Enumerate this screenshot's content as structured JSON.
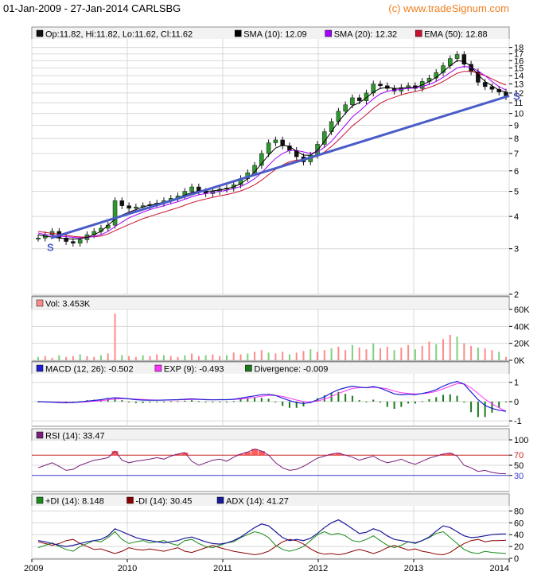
{
  "header": {
    "title": "01-Jan-2009 - 27-Jan-2014 CARLSBG",
    "brand": "(c) www.tradeSignum.com"
  },
  "colors": {
    "frame": "#8a8a8a",
    "grid": "#d8d8d8",
    "price_up": "#2e9a2e",
    "price_down": "#111111",
    "sma10": "#000000",
    "sma20": "#a400ff",
    "ema50": "#c8102e",
    "trendline": "#4a5cc8",
    "volume": "#ff8a8a",
    "volume_up": "#7ed07e",
    "macd": "#1f1fd0",
    "exp": "#ff33ff",
    "divergence": "#1a7a1a",
    "rsi": "#7a1f7a",
    "rsi_zone": "#ff4040",
    "pdi": "#1a8a1a",
    "mdi": "#8b0000",
    "adx": "#1a1a9a"
  },
  "chart_data": [
    {
      "type": "candlestick",
      "id": "price",
      "scale": "log",
      "ylim": [
        2,
        19
      ],
      "yticks": [
        "2",
        "3",
        "4",
        "5",
        "6",
        "7",
        "8",
        "9",
        "10",
        "11",
        "12",
        "13",
        "14",
        "15",
        "16",
        "17",
        "18"
      ],
      "legend": [
        {
          "label": "Op:11.82, Hi:11.82, Lo:11.62, Cl:11.62",
          "color_key": "price_down"
        },
        {
          "label": "SMA (10): 12.09",
          "color_key": "sma10"
        },
        {
          "label": "SMA (20): 12.32",
          "color_key": "sma20"
        },
        {
          "label": "EMA (50): 12.88",
          "color_key": "ema50"
        }
      ],
      "close": [
        3.3,
        3.4,
        3.5,
        3.3,
        3.2,
        3.15,
        3.25,
        3.4,
        3.5,
        3.6,
        3.7,
        4.6,
        4.4,
        4.3,
        4.35,
        4.4,
        4.45,
        4.5,
        4.6,
        4.7,
        4.8,
        5.0,
        5.2,
        5.0,
        4.9,
        5.0,
        5.1,
        5.15,
        5.3,
        5.6,
        5.9,
        6.3,
        7.0,
        7.7,
        7.9,
        7.5,
        7.2,
        6.8,
        6.5,
        6.9,
        7.6,
        8.5,
        9.3,
        10.2,
        10.8,
        11.5,
        11.2,
        12.0,
        13.0,
        12.8,
        12.5,
        12.2,
        12.6,
        12.8,
        12.5,
        13.3,
        13.7,
        14.4,
        15.3,
        16.3,
        16.9,
        15.5,
        14.5,
        13.2,
        12.7,
        12.4,
        12.1,
        11.6
      ],
      "sma10": [
        3.4,
        3.35,
        3.33,
        3.3,
        3.28,
        3.27,
        3.28,
        3.32,
        3.4,
        3.5,
        3.7,
        3.9,
        4.05,
        4.15,
        4.25,
        4.35,
        4.42,
        4.48,
        4.54,
        4.62,
        4.72,
        4.84,
        4.95,
        5.0,
        5.0,
        5.02,
        5.06,
        5.12,
        5.2,
        5.35,
        5.6,
        5.95,
        6.4,
        6.9,
        7.35,
        7.55,
        7.45,
        7.15,
        6.9,
        6.9,
        7.2,
        7.8,
        8.5,
        9.3,
        10.0,
        10.7,
        11.0,
        11.5,
        12.1,
        12.5,
        12.6,
        12.5,
        12.5,
        12.6,
        12.6,
        12.9,
        13.3,
        13.8,
        14.5,
        15.3,
        16.0,
        15.9,
        15.2,
        14.1,
        13.3,
        12.8,
        12.3,
        12.09
      ],
      "sma20": [
        3.45,
        3.4,
        3.38,
        3.36,
        3.34,
        3.32,
        3.3,
        3.31,
        3.35,
        3.4,
        3.5,
        3.65,
        3.8,
        3.95,
        4.05,
        4.15,
        4.25,
        4.32,
        4.4,
        4.48,
        4.56,
        4.66,
        4.76,
        4.85,
        4.9,
        4.95,
        5.0,
        5.05,
        5.12,
        5.22,
        5.38,
        5.6,
        5.9,
        6.3,
        6.7,
        7.0,
        7.2,
        7.2,
        7.1,
        7.0,
        7.1,
        7.4,
        7.8,
        8.4,
        9.0,
        9.7,
        10.2,
        10.8,
        11.4,
        11.9,
        12.2,
        12.3,
        12.4,
        12.5,
        12.55,
        12.7,
        12.95,
        13.3,
        13.8,
        14.4,
        15.0,
        15.2,
        15.1,
        14.6,
        14.0,
        13.3,
        12.7,
        12.32
      ],
      "ema50": [
        3.5,
        3.47,
        3.44,
        3.41,
        3.38,
        3.35,
        3.33,
        3.33,
        3.34,
        3.36,
        3.42,
        3.52,
        3.62,
        3.72,
        3.82,
        3.92,
        4.0,
        4.08,
        4.16,
        4.24,
        4.32,
        4.42,
        4.52,
        4.6,
        4.67,
        4.74,
        4.8,
        4.86,
        4.93,
        5.02,
        5.14,
        5.3,
        5.52,
        5.8,
        6.08,
        6.32,
        6.5,
        6.6,
        6.64,
        6.7,
        6.85,
        7.1,
        7.45,
        7.9,
        8.4,
        8.95,
        9.4,
        9.9,
        10.45,
        10.95,
        11.3,
        11.55,
        11.8,
        12.0,
        12.15,
        12.35,
        12.6,
        12.9,
        13.3,
        13.8,
        14.3,
        14.55,
        14.55,
        14.3,
        14.0,
        13.6,
        13.2,
        12.88
      ],
      "trendline": {
        "label": "S",
        "from": [
          0.04,
          3.3
        ],
        "to": [
          1.0,
          11.7
        ]
      }
    },
    {
      "type": "bar",
      "id": "volume",
      "ylim": [
        0,
        60
      ],
      "yticks": [
        "0K",
        "20K",
        "40K",
        "60K"
      ],
      "legend": [
        {
          "label": "Vol: 3.453K",
          "color_key": "volume"
        }
      ],
      "values": [
        4,
        5,
        3,
        6,
        4,
        5,
        7,
        5,
        4,
        6,
        8,
        55,
        6,
        5,
        4,
        6,
        5,
        7,
        6,
        5,
        4,
        6,
        8,
        5,
        6,
        7,
        5,
        6,
        9,
        7,
        8,
        10,
        12,
        9,
        8,
        10,
        7,
        9,
        11,
        13,
        10,
        12,
        14,
        16,
        12,
        18,
        15,
        13,
        20,
        14,
        16,
        12,
        15,
        18,
        13,
        17,
        22,
        19,
        25,
        30,
        28,
        20,
        17,
        15,
        14,
        12,
        10,
        4
      ]
    },
    {
      "type": "line",
      "id": "macd",
      "ylim": [
        -1.2,
        1.4
      ],
      "yticks": [
        "-1",
        "0",
        "1"
      ],
      "legend": [
        {
          "label": "MACD (12, 26): -0.502",
          "color_key": "macd"
        },
        {
          "label": "EXP (9): -0.493",
          "color_key": "exp"
        },
        {
          "label": "Divergence: -0.009",
          "color_key": "divergence"
        }
      ],
      "macd": [
        0.0,
        -0.02,
        -0.03,
        -0.05,
        -0.06,
        -0.05,
        -0.02,
        0.02,
        0.06,
        0.1,
        0.16,
        0.2,
        0.18,
        0.14,
        0.1,
        0.08,
        0.07,
        0.07,
        0.08,
        0.09,
        0.1,
        0.12,
        0.14,
        0.12,
        0.1,
        0.09,
        0.1,
        0.1,
        0.12,
        0.18,
        0.24,
        0.3,
        0.36,
        0.38,
        0.32,
        0.18,
        0.05,
        -0.05,
        -0.1,
        -0.05,
        0.1,
        0.25,
        0.45,
        0.62,
        0.72,
        0.8,
        0.75,
        0.72,
        0.78,
        0.7,
        0.55,
        0.4,
        0.35,
        0.38,
        0.36,
        0.42,
        0.5,
        0.62,
        0.8,
        0.95,
        1.05,
        0.9,
        0.5,
        0.1,
        -0.2,
        -0.35,
        -0.45,
        -0.502
      ],
      "exp": [
        0.0,
        -0.01,
        -0.02,
        -0.03,
        -0.04,
        -0.04,
        -0.03,
        -0.01,
        0.02,
        0.05,
        0.09,
        0.13,
        0.15,
        0.15,
        0.13,
        0.11,
        0.09,
        0.08,
        0.08,
        0.08,
        0.09,
        0.1,
        0.11,
        0.11,
        0.11,
        0.1,
        0.1,
        0.1,
        0.11,
        0.13,
        0.17,
        0.22,
        0.28,
        0.32,
        0.32,
        0.27,
        0.18,
        0.08,
        0.0,
        -0.02,
        0.03,
        0.12,
        0.27,
        0.42,
        0.56,
        0.68,
        0.72,
        0.72,
        0.74,
        0.72,
        0.66,
        0.55,
        0.46,
        0.42,
        0.4,
        0.41,
        0.45,
        0.53,
        0.66,
        0.8,
        0.93,
        0.92,
        0.72,
        0.42,
        0.12,
        -0.12,
        -0.32,
        -0.493
      ]
    },
    {
      "type": "line",
      "id": "rsi",
      "ylim": [
        0,
        100
      ],
      "yticks": [
        "30",
        "50",
        "70",
        "100"
      ],
      "legend": [
        {
          "label": "RSI (14): 33.47",
          "color_key": "rsi"
        }
      ],
      "values": [
        45,
        50,
        55,
        48,
        40,
        42,
        50,
        55,
        60,
        62,
        65,
        78,
        60,
        55,
        58,
        60,
        62,
        65,
        62,
        68,
        72,
        75,
        58,
        50,
        55,
        60,
        62,
        58,
        66,
        72,
        76,
        82,
        78,
        70,
        55,
        45,
        40,
        42,
        48,
        56,
        64,
        68,
        72,
        74,
        70,
        66,
        60,
        64,
        68,
        60,
        55,
        58,
        62,
        56,
        52,
        58,
        64,
        68,
        72,
        74,
        68,
        50,
        45,
        38,
        40,
        36,
        34,
        33.47
      ]
    },
    {
      "type": "line",
      "id": "dmi",
      "ylim": [
        0,
        90
      ],
      "yticks": [
        "0",
        "20",
        "40",
        "60",
        "80"
      ],
      "legend": [
        {
          "label": "+DI (14): 8.148",
          "color_key": "pdi"
        },
        {
          "label": "-DI (14): 30.45",
          "color_key": "mdi"
        },
        {
          "label": "ADX (14): 41.27",
          "color_key": "adx"
        }
      ],
      "pdi": [
        18,
        22,
        26,
        20,
        15,
        12,
        20,
        25,
        30,
        28,
        35,
        45,
        32,
        25,
        28,
        30,
        26,
        28,
        30,
        25,
        22,
        30,
        32,
        25,
        20,
        18,
        22,
        26,
        28,
        35,
        40,
        45,
        42,
        35,
        22,
        15,
        12,
        15,
        20,
        30,
        40,
        45,
        40,
        42,
        38,
        30,
        28,
        32,
        38,
        30,
        22,
        18,
        22,
        28,
        25,
        30,
        35,
        42,
        45,
        35,
        25,
        15,
        10,
        8,
        12,
        10,
        9,
        8.148
      ],
      "mdi": [
        28,
        25,
        22,
        25,
        30,
        32,
        25,
        20,
        15,
        16,
        12,
        8,
        12,
        18,
        15,
        14,
        16,
        14,
        12,
        15,
        18,
        12,
        10,
        14,
        18,
        22,
        18,
        15,
        12,
        10,
        8,
        6,
        8,
        12,
        20,
        28,
        32,
        30,
        24,
        16,
        10,
        7,
        8,
        6,
        8,
        12,
        15,
        12,
        8,
        12,
        18,
        22,
        18,
        14,
        16,
        12,
        10,
        7,
        6,
        10,
        18,
        25,
        30,
        32,
        28,
        30,
        30,
        30.45
      ],
      "adx": [
        30,
        28,
        25,
        22,
        20,
        22,
        25,
        28,
        30,
        32,
        38,
        50,
        45,
        40,
        35,
        32,
        30,
        28,
        26,
        28,
        30,
        34,
        36,
        32,
        28,
        25,
        24,
        26,
        30,
        36,
        44,
        52,
        58,
        55,
        45,
        35,
        30,
        32,
        30,
        34,
        42,
        52,
        60,
        65,
        58,
        50,
        42,
        44,
        50,
        46,
        38,
        32,
        30,
        28,
        26,
        30,
        36,
        46,
        55,
        52,
        45,
        38,
        35,
        36,
        38,
        40,
        41,
        41.27
      ]
    }
  ],
  "xaxis": {
    "labels": [
      "2009",
      "2010",
      "2011",
      "2012",
      "2013",
      "2014"
    ]
  }
}
